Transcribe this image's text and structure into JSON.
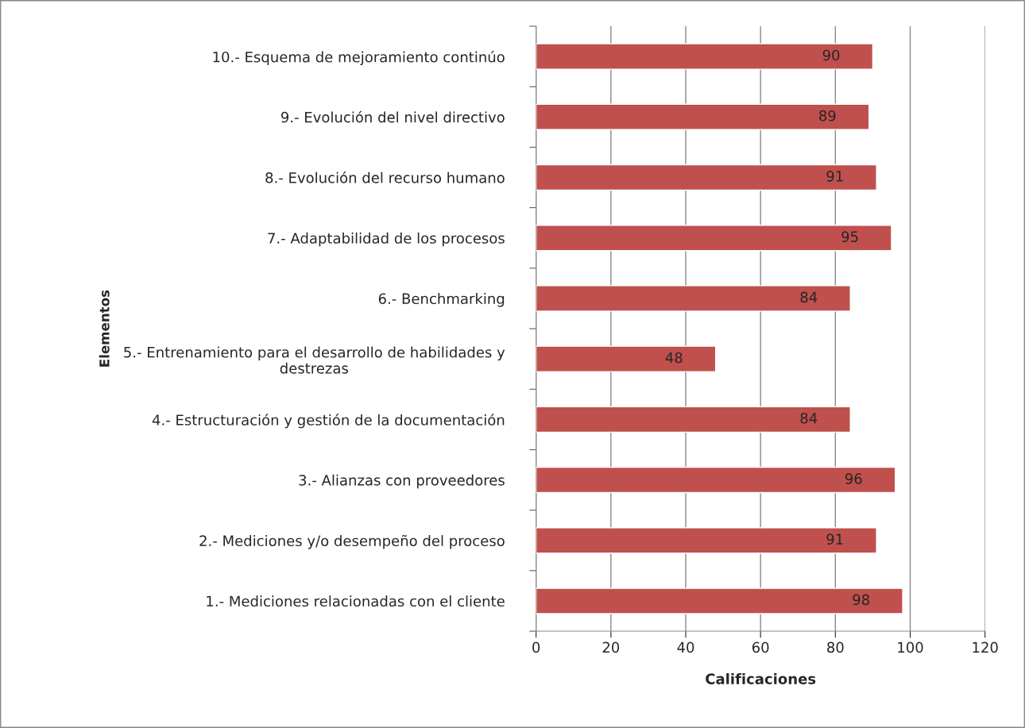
{
  "chart_data": {
    "type": "bar",
    "orientation": "horizontal",
    "xlabel": "Calificaciones",
    "ylabel": "Elementos",
    "categories": [
      "10.- Esquema de mejoramiento continúo",
      "9.- Evolución del nivel directivo",
      "8.- Evolución del recurso humano",
      "7.- Adaptabilidad de los procesos",
      "6.- Benchmarking",
      "5.- Entrenamiento para el desarrollo de habilidades y destrezas",
      "4.- Estructuración y gestión de la documentación",
      "3.- Alianzas con proveedores",
      "2.- Mediciones y/o desempeño del proceso",
      "1.- Mediciones relacionadas con el cliente"
    ],
    "values": [
      90,
      89,
      91,
      95,
      84,
      48,
      84,
      96,
      91,
      98
    ],
    "color": "#c0504d",
    "data_labels": true,
    "grid": "x",
    "xlim": [
      0,
      120
    ],
    "xticks": [
      0,
      20,
      40,
      60,
      80,
      100,
      120
    ]
  }
}
